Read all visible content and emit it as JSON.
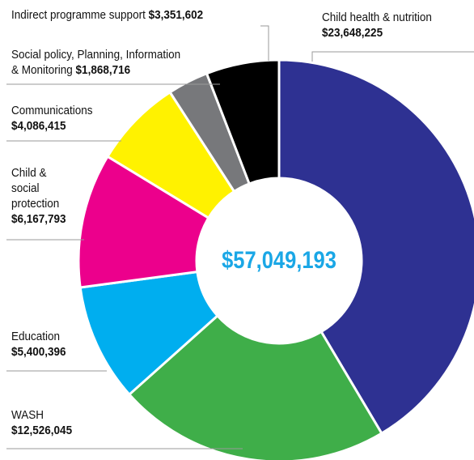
{
  "chart_data": {
    "type": "pie",
    "style": "donut",
    "total_label": "$57,049,193",
    "slices": [
      {
        "label": "Child health & nutrition",
        "value_label": "$23,648,225",
        "value": 23648225,
        "color": "#2e3192"
      },
      {
        "label": "WASH",
        "value_label": "$12,526,045",
        "value": 12526045,
        "color": "#3fae49"
      },
      {
        "label": "Education",
        "value_label": "$5,400,396",
        "value": 5400396,
        "color": "#00aeef"
      },
      {
        "label": "Child & social protection",
        "value_label": "$6,167,793",
        "value": 6167793,
        "color": "#ec008c"
      },
      {
        "label": "Communications",
        "value_label": "$4,086,415",
        "value": 4086415,
        "color": "#fff200"
      },
      {
        "label": "Social policy, Planning, Information & Monitoring",
        "value_label": "$1,868,716",
        "value": 1868716,
        "color": "#77787b"
      },
      {
        "label": "Indirect programme support",
        "value_label": "$3,351,602",
        "value": 3351602,
        "color": "#000000"
      }
    ]
  },
  "labels": {
    "child_health": {
      "line1": "Child health & nutrition",
      "amount": "$23,648,225"
    },
    "wash": {
      "line1": "WASH",
      "amount": "$12,526,045"
    },
    "education": {
      "line1": "Education",
      "amount": "$5,400,396"
    },
    "child_protection": {
      "line1": "Child &",
      "line2": "social",
      "line3": "protection",
      "amount": "$6,167,793"
    },
    "communications": {
      "line1": "Communications",
      "amount": "$4,086,415"
    },
    "social_policy": {
      "line1": "Social policy, Planning, Information",
      "line2": "& Monitoring",
      "amount": "$1,868,716"
    },
    "indirect": {
      "line1": "Indirect programme support",
      "amount": "$3,351,602"
    }
  }
}
